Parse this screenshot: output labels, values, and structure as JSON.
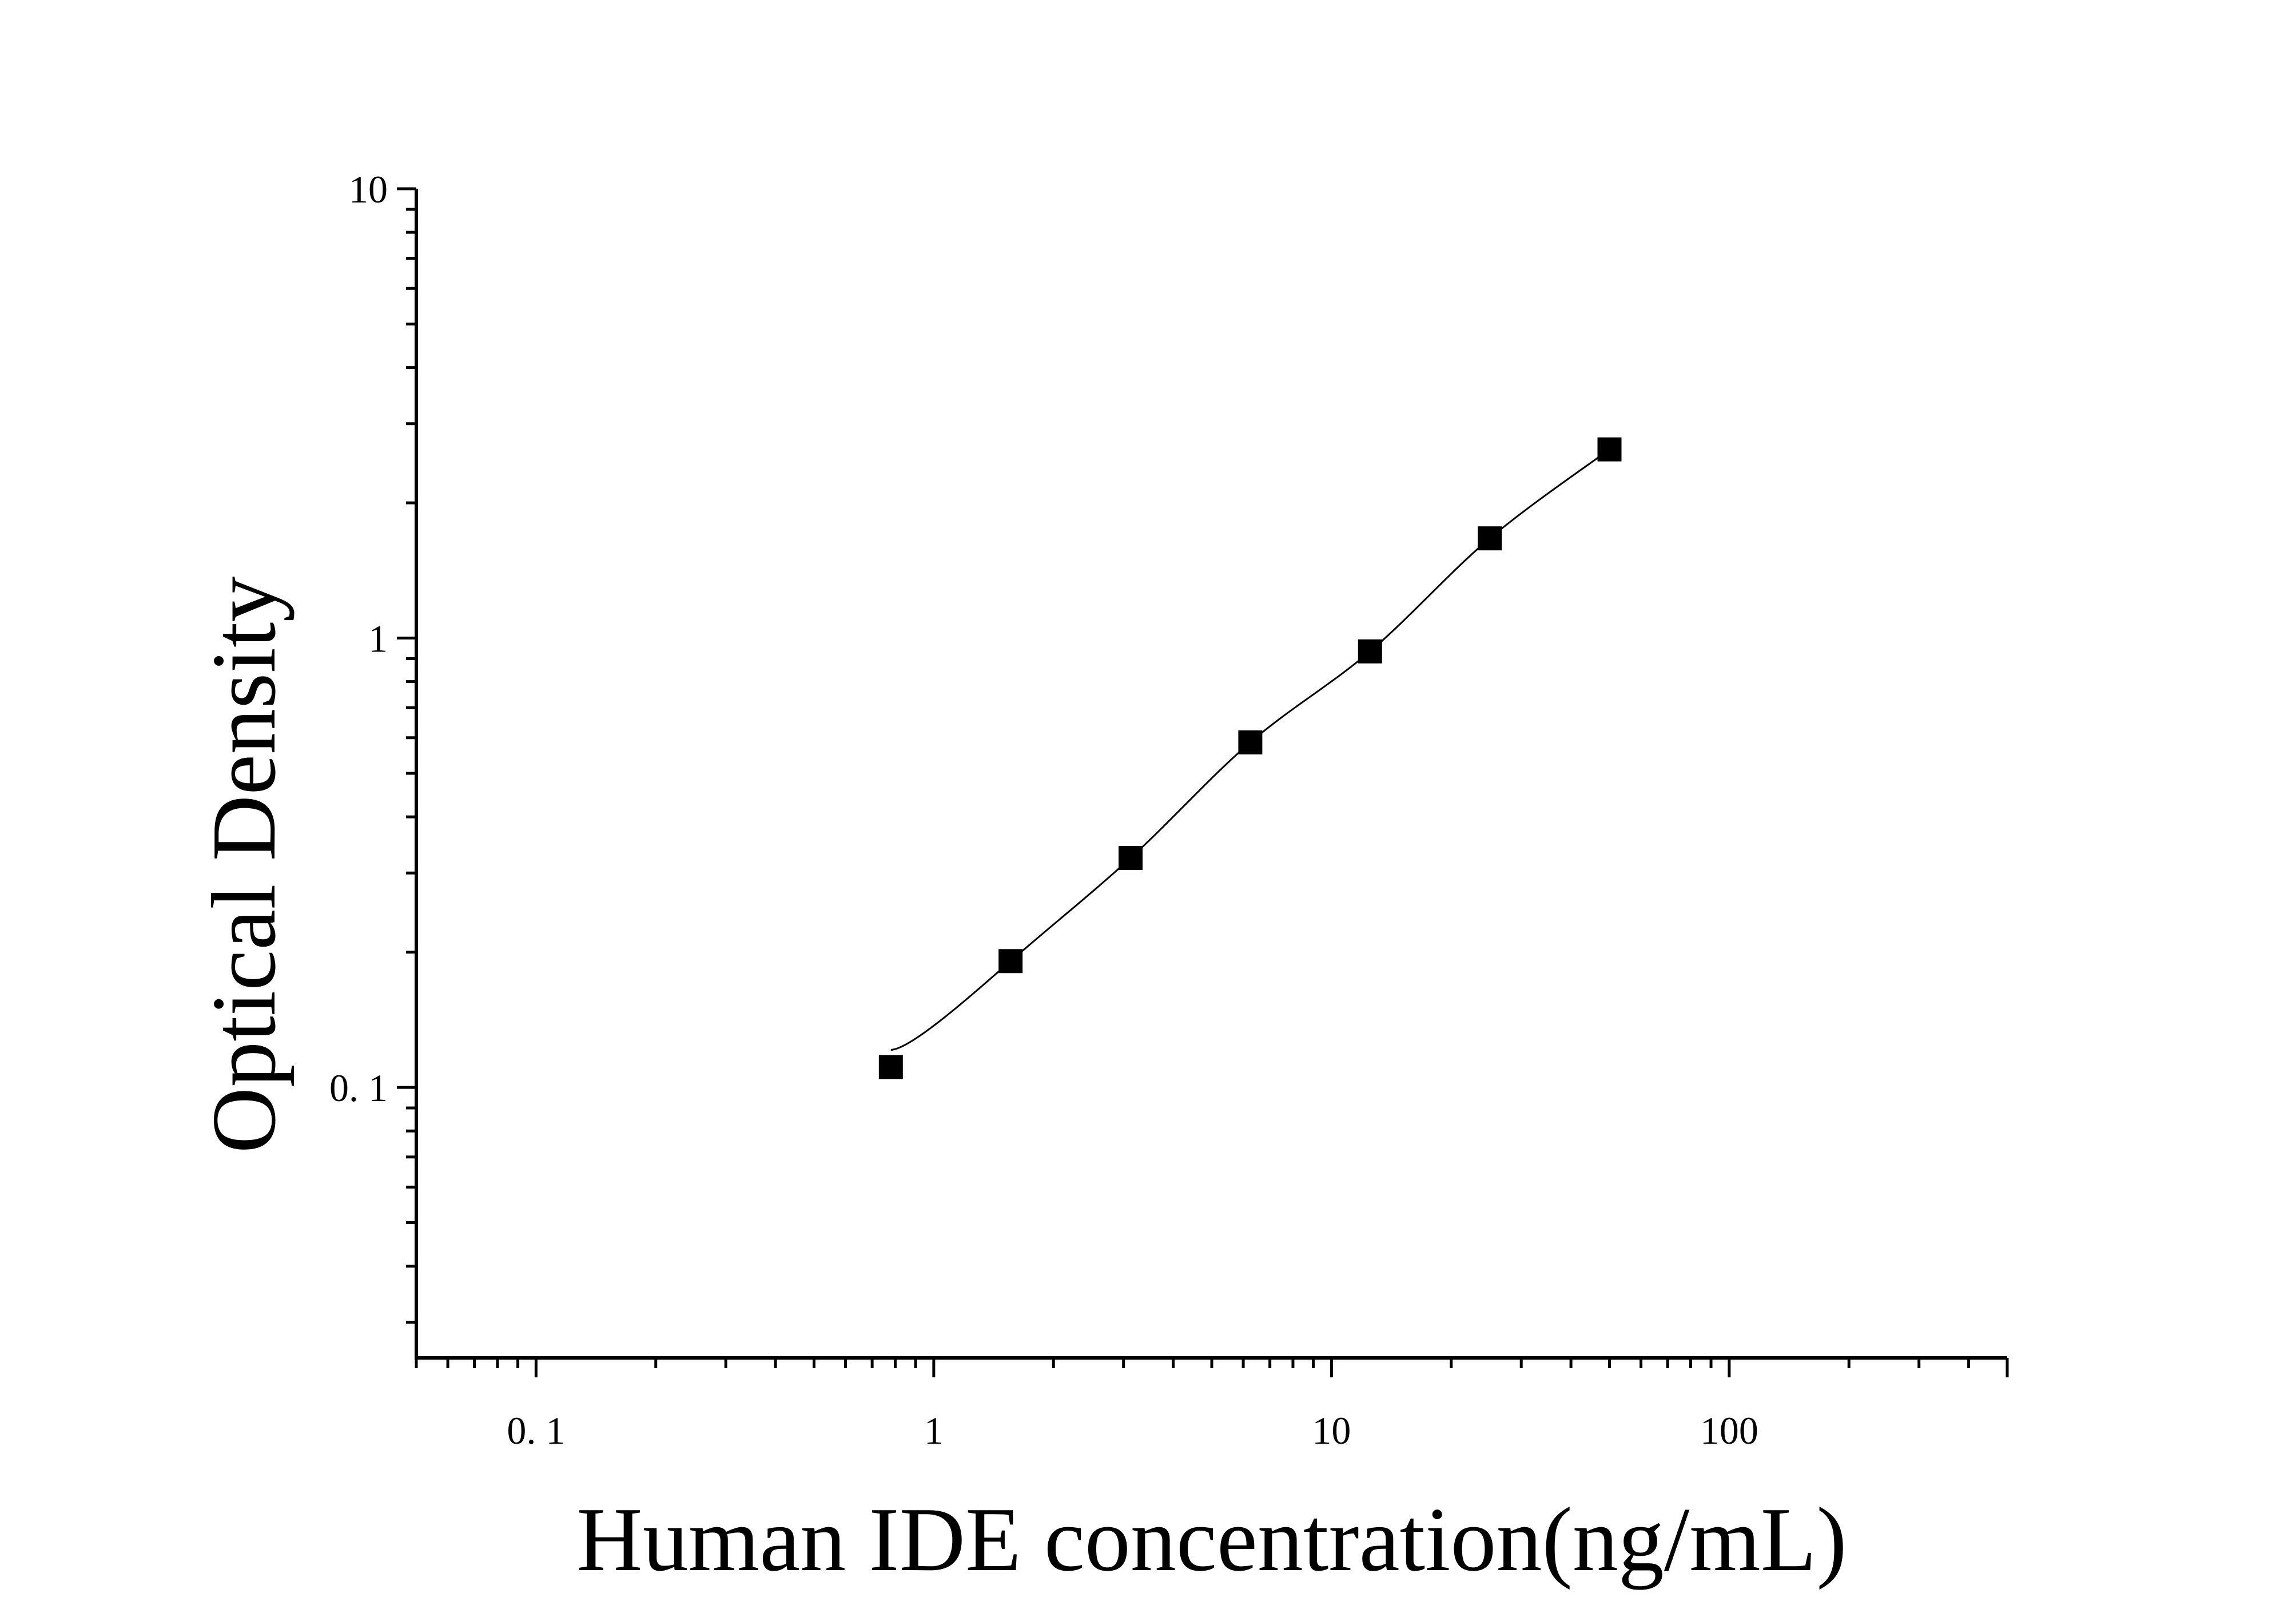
{
  "chart_data": {
    "type": "scatter",
    "title": "",
    "xlabel": "Human IDE concentration(ng/mL)",
    "ylabel": "Optical Density",
    "x_scale": "log",
    "y_scale": "log",
    "xlim": [
      0.05,
      500
    ],
    "ylim": [
      0.025,
      10
    ],
    "x_ticks": [
      {
        "value": 0.1,
        "label": "0. 1"
      },
      {
        "value": 1,
        "label": "1"
      },
      {
        "value": 10,
        "label": "10"
      },
      {
        "value": 100,
        "label": "100"
      }
    ],
    "y_ticks": [
      {
        "value": 0.1,
        "label": "0. 1"
      },
      {
        "value": 1,
        "label": "1"
      },
      {
        "value": 10,
        "label": "10"
      }
    ],
    "grid": false,
    "marker": "square",
    "fit_line": true,
    "color": "#000000",
    "series": [
      {
        "x": [
          0.78,
          1.56,
          3.125,
          6.25,
          12.5,
          25,
          50
        ],
        "y": [
          0.111,
          0.191,
          0.324,
          0.586,
          0.934,
          1.667,
          2.63
        ]
      }
    ]
  }
}
